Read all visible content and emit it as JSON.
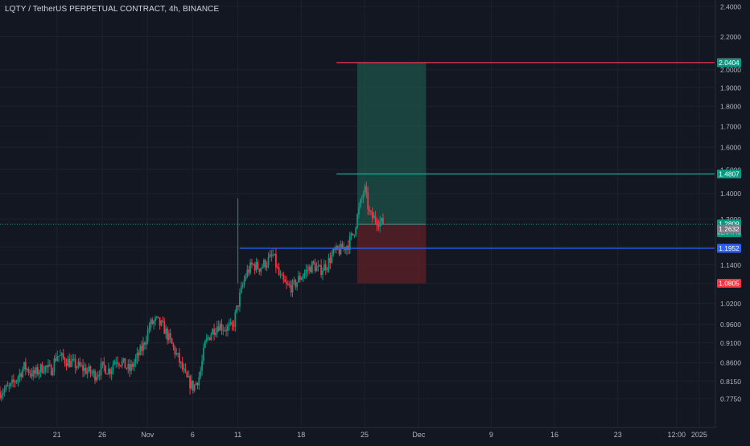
{
  "chart_data": {
    "type": "candlestick",
    "title": "LQTY / TetherUS PERPETUAL CONTRACT, 4h, BINANCE",
    "symbol": "LQTY / TetherUS PERPETUAL CONTRACT",
    "interval": "4h",
    "exchange": "BINANCE",
    "y_axis_scale": "log",
    "ylim": [
      0.745,
      2.45
    ],
    "y_ticks": [
      "2.4000",
      "2.2000",
      "2.0000",
      "1.9000",
      "1.8000",
      "1.7000",
      "1.6000",
      "1.5000",
      "1.4000",
      "1.3000",
      "1.2000",
      "1.1400",
      "1.0800",
      "1.0200",
      "0.9600",
      "0.9100",
      "0.8600",
      "0.8150",
      "0.7750"
    ],
    "x_ticks": [
      "21",
      "26",
      "Nov",
      "6",
      "11",
      "18",
      "25",
      "Dec",
      "9",
      "16",
      "23",
      "12:00",
      "2025"
    ],
    "x_tick_days": [
      -10,
      -5,
      0,
      5,
      10,
      17,
      24,
      30,
      38,
      45,
      52,
      58.5,
      61
    ],
    "xlim_days": [
      -16.3,
      62.7
    ],
    "candle_days_per_bar": 0.1667,
    "price_path": [
      [
        -16.3,
        0.79
      ],
      [
        -15.2,
        0.8
      ],
      [
        -14.5,
        0.82
      ],
      [
        -13.6,
        0.85
      ],
      [
        -12.6,
        0.83
      ],
      [
        -11.5,
        0.85
      ],
      [
        -10.7,
        0.84
      ],
      [
        -10.0,
        0.88
      ],
      [
        -9.4,
        0.87
      ],
      [
        -8.6,
        0.86
      ],
      [
        -7.6,
        0.85
      ],
      [
        -6.7,
        0.84
      ],
      [
        -5.8,
        0.83
      ],
      [
        -4.9,
        0.85
      ],
      [
        -4.2,
        0.84
      ],
      [
        -3.5,
        0.87
      ],
      [
        -2.8,
        0.86
      ],
      [
        -2.0,
        0.84
      ],
      [
        -1.2,
        0.87
      ],
      [
        -0.5,
        0.9
      ],
      [
        0.3,
        0.96
      ],
      [
        1.0,
        0.97
      ],
      [
        1.8,
        0.95
      ],
      [
        2.6,
        0.91
      ],
      [
        3.4,
        0.87
      ],
      [
        4.3,
        0.82
      ],
      [
        5.1,
        0.8
      ],
      [
        5.8,
        0.83
      ],
      [
        6.4,
        0.91
      ],
      [
        7.1,
        0.94
      ],
      [
        7.8,
        0.96
      ],
      [
        8.6,
        0.95
      ],
      [
        9.4,
        0.95
      ],
      [
        10.2,
        1.04
      ],
      [
        10.9,
        1.11
      ],
      [
        11.6,
        1.14
      ],
      [
        12.4,
        1.13
      ],
      [
        13.2,
        1.15
      ],
      [
        13.9,
        1.17
      ],
      [
        14.6,
        1.1
      ],
      [
        15.4,
        1.07
      ],
      [
        16.1,
        1.07
      ],
      [
        16.9,
        1.1
      ],
      [
        17.6,
        1.12
      ],
      [
        18.3,
        1.14
      ],
      [
        19.0,
        1.12
      ],
      [
        19.8,
        1.14
      ],
      [
        20.6,
        1.18
      ],
      [
        21.4,
        1.19
      ],
      [
        22.2,
        1.21
      ],
      [
        22.8,
        1.25
      ],
      [
        23.4,
        1.34
      ],
      [
        24.0,
        1.42
      ],
      [
        24.6,
        1.31
      ],
      [
        25.3,
        1.3
      ],
      [
        26.1,
        1.2809
      ]
    ],
    "vertical_spike": {
      "day": 10.0,
      "low": 1.08,
      "high": 1.38
    },
    "horizontal_lines": [
      {
        "price": 2.0415,
        "color": "#f23645",
        "x_start_day": 20.9,
        "label": "2.0415"
      },
      {
        "price": 1.4807,
        "color": "#22ab94",
        "x_start_day": 20.9,
        "label": "1.4807"
      },
      {
        "price": 1.1952,
        "color": "#2962ff",
        "x_start_day": 10.2,
        "label": "1.1952"
      }
    ],
    "position_tool": {
      "entry": 1.2809,
      "target": 2.0404,
      "stop": 1.0805,
      "x_start_day": 23.2,
      "x_end_day": 30.8,
      "profit_color": "#1e5248",
      "loss_color": "#5a1f27"
    },
    "price_labels": [
      {
        "text": "2.0415",
        "price": 2.0415,
        "bg": "#f23645"
      },
      {
        "text": "2.0404",
        "price": 2.0404,
        "bg": "#089981"
      },
      {
        "text": "1.4807",
        "price": 1.4807,
        "bg": "#089981"
      },
      {
        "text": "1.2809",
        "sub": "02:04:40",
        "price": 1.2809,
        "bg": "#089981"
      },
      {
        "text": "1.2632",
        "price": 1.2632,
        "bg": "#787b86"
      },
      {
        "text": "1.1952",
        "price": 1.1952,
        "bg": "#2962ff"
      },
      {
        "text": "1.0805",
        "price": 1.0805,
        "bg": "#f23645"
      }
    ],
    "current_price": "1.2809",
    "countdown": "02:04:40",
    "up_color": "#089981",
    "down_color": "#f23645",
    "grid": true
  }
}
